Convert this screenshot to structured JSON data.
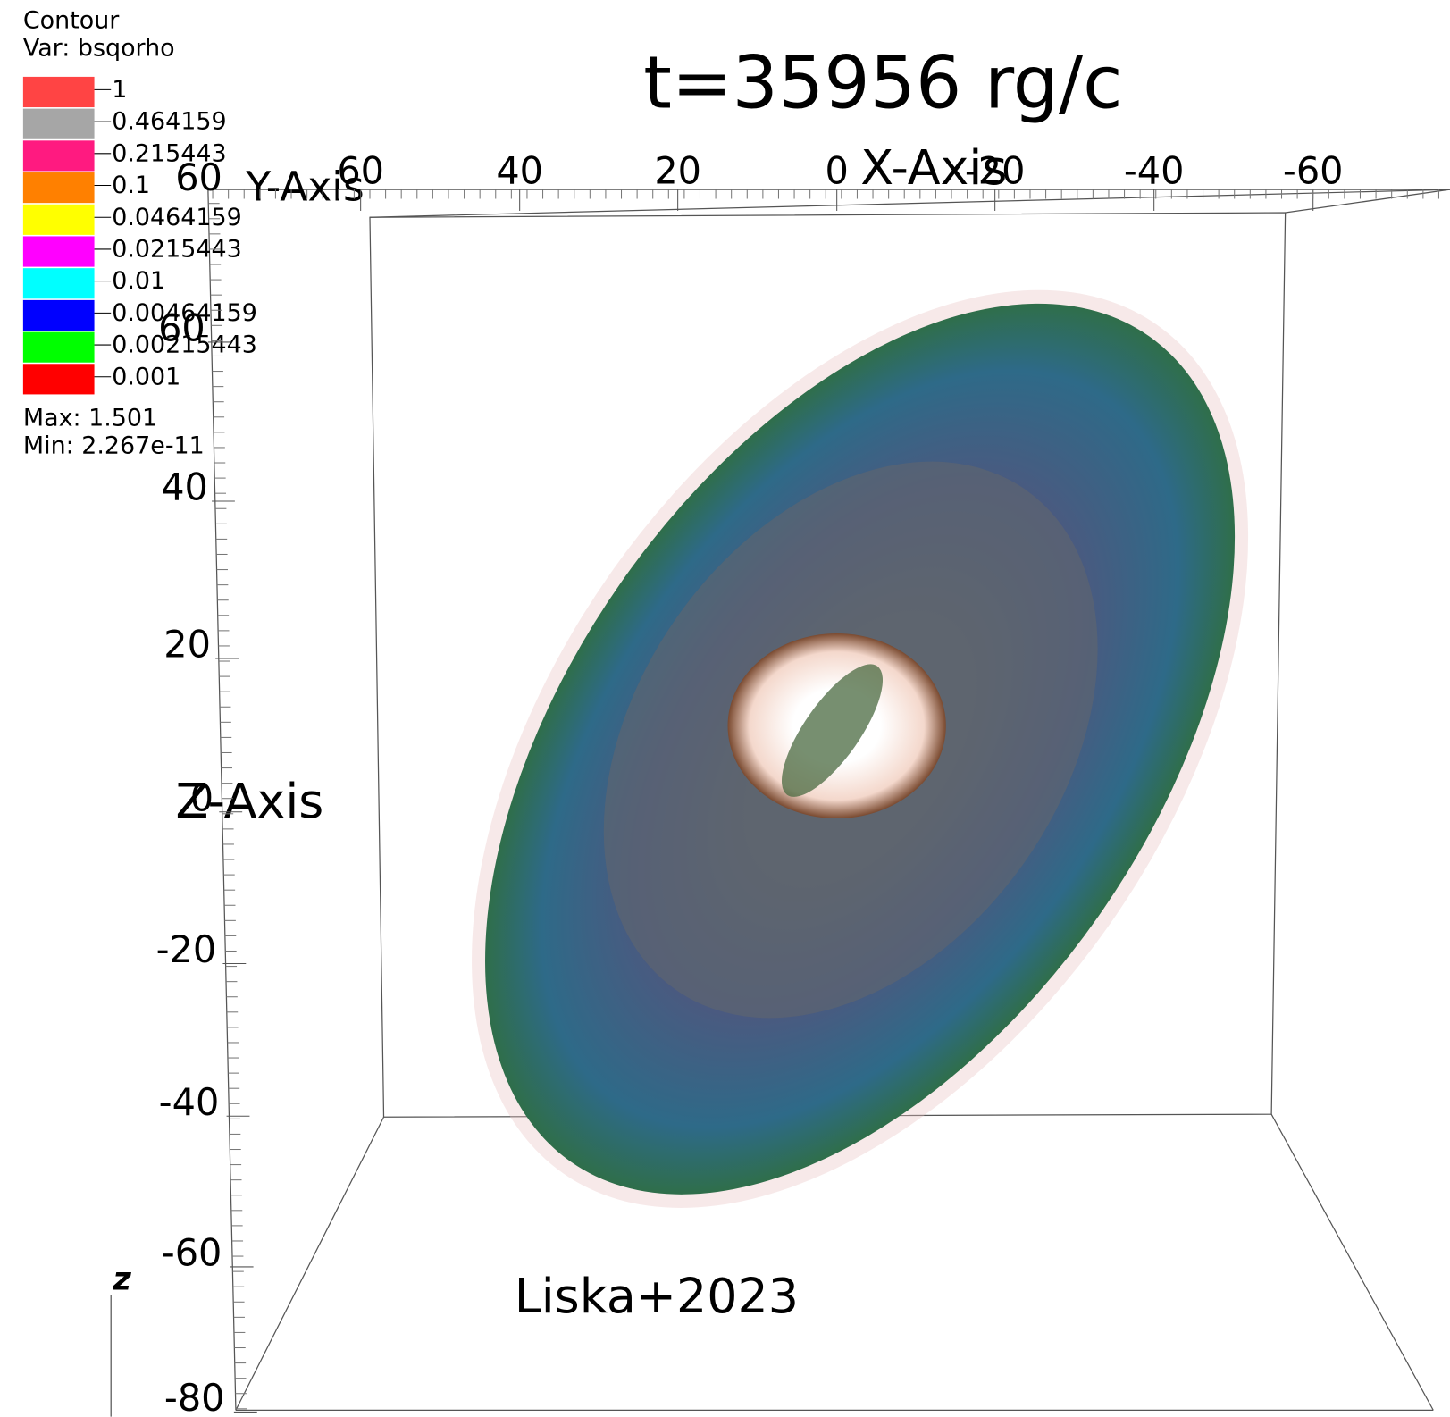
{
  "legend": {
    "title": "Contour",
    "variable": "Var: bsqorho",
    "levels": [
      {
        "label": "1",
        "color": "#ff4444"
      },
      {
        "label": "0.464159",
        "color": "#a6a6a6"
      },
      {
        "label": "0.215443",
        "color": "#ff1a80"
      },
      {
        "label": "0.1",
        "color": "#ff8000"
      },
      {
        "label": "0.0464159",
        "color": "#ffff00"
      },
      {
        "label": "0.0215443",
        "color": "#ff00ff"
      },
      {
        "label": "0.01",
        "color": "#00ffff"
      },
      {
        "label": "0.00464159",
        "color": "#0000ff"
      },
      {
        "label": "0.00215443",
        "color": "#00ff00"
      },
      {
        "label": "0.001",
        "color": "#ff0000"
      }
    ],
    "max": "Max:  1.501",
    "min": "Min:  2.267e-11"
  },
  "title": "t=35956 rg/c",
  "x_axis": {
    "title": "X-Axis",
    "ticks": [
      "60",
      "40",
      "20",
      "0",
      "-20",
      "-40",
      "-60"
    ]
  },
  "y_axis": {
    "title": "Y-Axis",
    "ticks": [
      "60"
    ]
  },
  "z_axis": {
    "title": "Z-Axis",
    "ticks": [
      "60",
      "40",
      "20",
      "0",
      "-20",
      "-40",
      "-60",
      "-80"
    ]
  },
  "triad_label": "z",
  "credit": "Liska+2023"
}
